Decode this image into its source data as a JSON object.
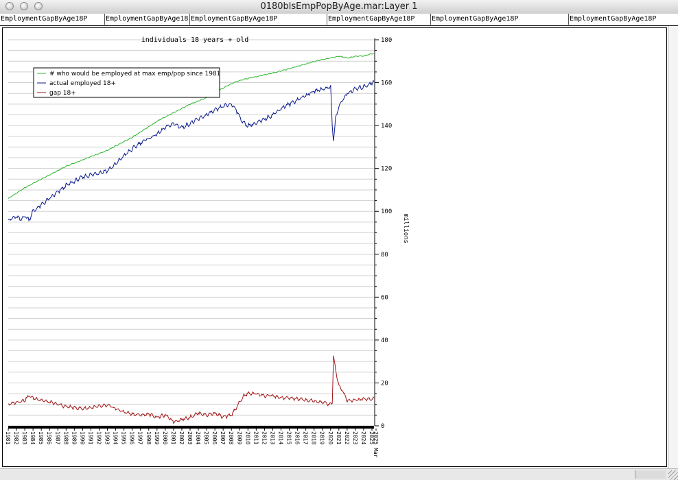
{
  "window": {
    "title": "0180blsEmpPopByAge.mar:Layer 1"
  },
  "columns": [
    "EmploymentGapByAge18P",
    "EmploymentGapByAge18",
    "EmploymentGapByAge18P",
    "EmploymentGapByAge18P",
    "EmploymentGapByAge18P",
    "EmploymentGapByAge18P"
  ],
  "chart_data": {
    "type": "line",
    "title": "individuals 18 years + old",
    "ylabel": "millions",
    "xlabel": "",
    "ylim": [
      0,
      180
    ],
    "y_ticks": [
      0,
      20,
      40,
      60,
      80,
      100,
      120,
      140,
      160,
      180
    ],
    "x_range": [
      1981,
      2025.25
    ],
    "x_tick_labels": [
      "1981",
      "1982",
      "1983",
      "1984",
      "1985",
      "1986",
      "1987",
      "1988",
      "1989",
      "1990",
      "1991",
      "1992",
      "1993",
      "1994",
      "1995",
      "1996",
      "1997",
      "1998",
      "1999",
      "2000",
      "2001",
      "2002",
      "2003",
      "2004",
      "2005",
      "2006",
      "2007",
      "2008",
      "2009",
      "2010",
      "2011",
      "2012",
      "2013",
      "2014",
      "2015",
      "2016",
      "2017",
      "2018",
      "2019",
      "2020",
      "2021",
      "2022",
      "2023",
      "2024",
      "2025",
      "2025 Mar"
    ],
    "grid": "horizontal",
    "legend_position": "top-left",
    "series": [
      {
        "name": "# who would be employed at max emp/pop since 1981",
        "color": "#2bb52b",
        "x": [
          1981,
          1982,
          1983,
          1984,
          1985,
          1986,
          1987,
          1988,
          1989,
          1990,
          1991,
          1992,
          1993,
          1994,
          1995,
          1996,
          1997,
          1998,
          1999,
          2000,
          2001,
          2002,
          2003,
          2004,
          2005,
          2006,
          2007,
          2008,
          2009,
          2010,
          2011,
          2012,
          2013,
          2014,
          2015,
          2016,
          2017,
          2018,
          2019,
          2020,
          2021,
          2022,
          2023,
          2024,
          2025,
          2025.25
        ],
        "values": [
          106,
          108.5,
          111,
          113,
          115,
          117,
          119,
          121,
          122.5,
          124,
          125.5,
          127,
          128.5,
          130.5,
          132.5,
          134.5,
          137,
          139.5,
          142,
          144,
          146,
          148,
          150,
          151.5,
          153,
          155,
          157.5,
          159.5,
          161,
          162,
          162.8,
          163.6,
          164.5,
          165.5,
          166.5,
          167.6,
          168.7,
          169.8,
          170.8,
          171.5,
          172.3,
          171.5,
          172.3,
          172.4,
          173.5,
          173.8
        ]
      },
      {
        "name": "actual employed 18+",
        "color": "#0a1a8c",
        "x": [
          1981,
          1982,
          1982.5,
          1983,
          1983.5,
          1984,
          1985,
          1986,
          1987,
          1988,
          1989,
          1990,
          1991,
          1992,
          1993,
          1994,
          1995,
          1996,
          1997,
          1998,
          1999,
          2000,
          2001,
          2002,
          2003,
          2004,
          2005,
          2006,
          2007,
          2008,
          2008.5,
          2009,
          2009.5,
          2010,
          2011,
          2012,
          2013,
          2014,
          2015,
          2016,
          2017,
          2018,
          2019,
          2020,
          2020.2,
          2020.35,
          2020.6,
          2021,
          2021.5,
          2022,
          2023,
          2024,
          2025,
          2025.25
        ],
        "values": [
          96,
          97.5,
          96,
          98,
          96,
          100,
          103,
          106,
          109,
          112,
          114,
          116,
          117,
          118,
          119,
          122,
          126,
          129,
          132,
          134,
          136,
          139,
          141,
          139,
          141,
          143,
          145,
          147,
          149,
          150,
          148,
          144,
          141,
          140,
          141,
          143,
          145,
          148,
          150,
          152,
          154,
          156,
          157,
          158,
          140,
          133,
          143,
          149,
          152,
          155,
          157,
          158,
          160,
          160.5
        ]
      },
      {
        "name": "gap 18+",
        "color": "#a01414",
        "x": [
          1981,
          1982,
          1983,
          1983.5,
          1984,
          1985,
          1986,
          1987,
          1988,
          1989,
          1990,
          1991,
          1992,
          1993,
          1994,
          1995,
          1996,
          1997,
          1998,
          1999,
          2000,
          2001,
          2002,
          2003,
          2004,
          2005,
          2006,
          2007,
          2008,
          2008.5,
          2009,
          2009.5,
          2010,
          2011,
          2012,
          2013,
          2014,
          2015,
          2016,
          2017,
          2018,
          2019,
          2020,
          2020.2,
          2020.35,
          2020.6,
          2021,
          2021.5,
          2022,
          2023,
          2024,
          2025,
          2025.25
        ],
        "values": [
          10,
          11,
          12,
          14,
          13,
          12,
          11,
          10,
          9,
          8.5,
          8,
          8.5,
          9,
          9.5,
          8,
          6.5,
          5.5,
          5,
          5.5,
          4,
          5,
          2,
          3,
          4,
          6,
          5,
          6,
          4,
          5,
          8,
          11,
          14,
          15,
          15,
          14,
          14,
          13,
          13,
          12.5,
          12,
          11.5,
          11,
          10,
          11,
          33,
          26,
          19,
          16,
          12,
          12,
          12.5,
          12.5,
          13
        ]
      }
    ]
  }
}
